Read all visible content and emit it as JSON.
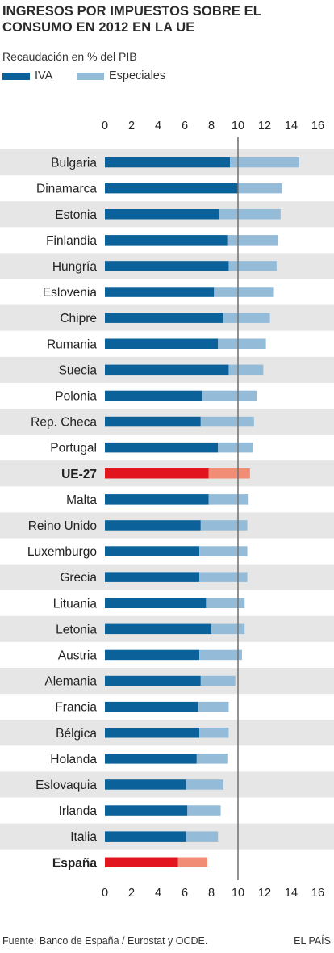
{
  "chart_data": {
    "type": "bar",
    "stacked": true,
    "orientation": "horizontal",
    "title": "INGRESOS POR IMPUESTOS SOBRE EL CONSUMO EN 2012 EN LA UE",
    "subtitle": "Recaudación en % del PIB",
    "xlim": [
      0,
      16
    ],
    "xticks": [
      0,
      2,
      4,
      6,
      8,
      10,
      12,
      14,
      16
    ],
    "grid": false,
    "legend_position": "top-left",
    "categories": [
      "Bulgaria",
      "Dinamarca",
      "Estonia",
      "Finlandia",
      "Hungría",
      "Eslovenia",
      "Chipre",
      "Rumania",
      "Suecia",
      "Polonia",
      "Rep. Checa",
      "Portugal",
      "UE-27",
      "Malta",
      "Reino Unido",
      "Luxemburgo",
      "Grecia",
      "Lituania",
      "Letonia",
      "Austria",
      "Alemania",
      "Francia",
      "Bélgica",
      "Holanda",
      "Eslovaquia",
      "Irlanda",
      "Italia",
      "España"
    ],
    "highlight": [
      "UE-27",
      "España"
    ],
    "series": [
      {
        "name": "IVA",
        "values": [
          9.4,
          10.0,
          8.6,
          9.2,
          9.3,
          8.2,
          8.9,
          8.5,
          9.3,
          7.3,
          7.2,
          8.5,
          7.8,
          7.8,
          7.2,
          7.1,
          7.1,
          7.6,
          8.0,
          7.1,
          7.2,
          7.0,
          7.1,
          6.9,
          6.1,
          6.2,
          6.1,
          5.5
        ]
      },
      {
        "name": "Especiales",
        "values": [
          5.2,
          3.3,
          4.6,
          3.8,
          3.6,
          4.5,
          3.5,
          3.6,
          2.6,
          4.1,
          4.0,
          2.6,
          3.1,
          3.0,
          3.5,
          3.6,
          3.6,
          2.9,
          2.5,
          3.2,
          2.6,
          2.3,
          2.2,
          2.3,
          2.8,
          2.5,
          2.4,
          2.2
        ]
      }
    ],
    "colors": {
      "iva": "#0b6199",
      "especiales": "#94bcd9",
      "iva_highlight": "#e2151f",
      "especiales_highlight": "#f08d74",
      "row_stripe": "#e6e6e6",
      "ref_line": "#6f6f6f"
    },
    "source": "Fuente: Banco de España / Eurostat  y OCDE.",
    "publisher": "EL PAÍS"
  }
}
